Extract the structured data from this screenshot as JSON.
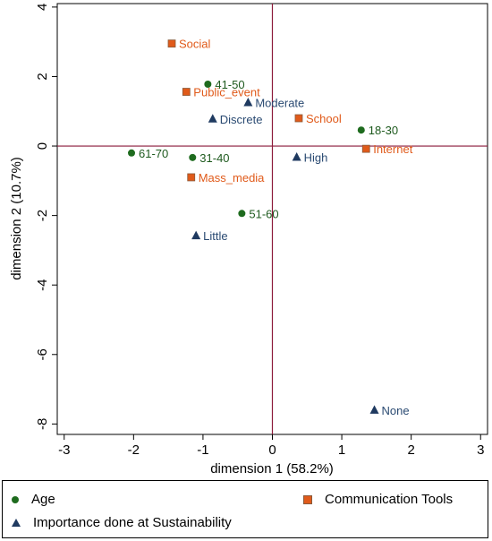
{
  "chart_data": {
    "type": "scatter",
    "xlabel": "dimension 1 (58.2%)",
    "ylabel": "dimension 2 (10.7%)",
    "xlim": [
      -3.1,
      3.1
    ],
    "ylim": [
      -8.3,
      4.1
    ],
    "x_ticks": [
      "-3",
      "-2",
      "-1",
      "0",
      "1",
      "2",
      "3"
    ],
    "y_ticks": [
      "4",
      "2",
      "0",
      "-2",
      "-4",
      "-6",
      "-8"
    ],
    "reference_lines": {
      "x": 0,
      "y": 0,
      "color": "#8b1a3a"
    },
    "legend_position": "bottom",
    "series": [
      {
        "name": "Age",
        "marker": "circle",
        "color": "#1e6b1e",
        "label_color": "#1e5a1e",
        "points": [
          {
            "label": "41-50",
            "x": -0.93,
            "y": 1.78
          },
          {
            "label": "18-30",
            "x": 1.28,
            "y": 0.46
          },
          {
            "label": "61-70",
            "x": -2.03,
            "y": -0.2
          },
          {
            "label": "31-40",
            "x": -1.15,
            "y": -0.33
          },
          {
            "label": "51-60",
            "x": -0.44,
            "y": -1.94
          }
        ]
      },
      {
        "name": "Communication Tools",
        "marker": "square",
        "color": "#e05a1a",
        "label_color": "#e05a1a",
        "points": [
          {
            "label": "Social",
            "x": -1.45,
            "y": 2.95
          },
          {
            "label": "Public_event",
            "x": -1.24,
            "y": 1.56
          },
          {
            "label": "School",
            "x": 0.38,
            "y": 0.8
          },
          {
            "label": "Internet",
            "x": 1.35,
            "y": -0.08
          },
          {
            "label": "Mass_media",
            "x": -1.17,
            "y": -0.9
          }
        ]
      },
      {
        "name": "Importance done at Sustainability",
        "marker": "triangle",
        "color": "#1f3a60",
        "label_color": "#2a4a72",
        "points": [
          {
            "label": "Moderate",
            "x": -0.35,
            "y": 1.25
          },
          {
            "label": "Discrete",
            "x": -0.86,
            "y": 0.78
          },
          {
            "label": "High",
            "x": 0.35,
            "y": -0.32
          },
          {
            "label": "Little",
            "x": -1.1,
            "y": -2.58
          },
          {
            "label": "None",
            "x": 1.47,
            "y": -7.6
          }
        ]
      }
    ]
  },
  "legend": {
    "items": [
      {
        "label": "Age",
        "marker": "circle",
        "color": "#1e6b1e"
      },
      {
        "label": "Communication Tools",
        "marker": "square",
        "color": "#e05a1a"
      },
      {
        "label": "Importance done at Sustainability",
        "marker": "triangle",
        "color": "#1f3a60"
      }
    ]
  }
}
